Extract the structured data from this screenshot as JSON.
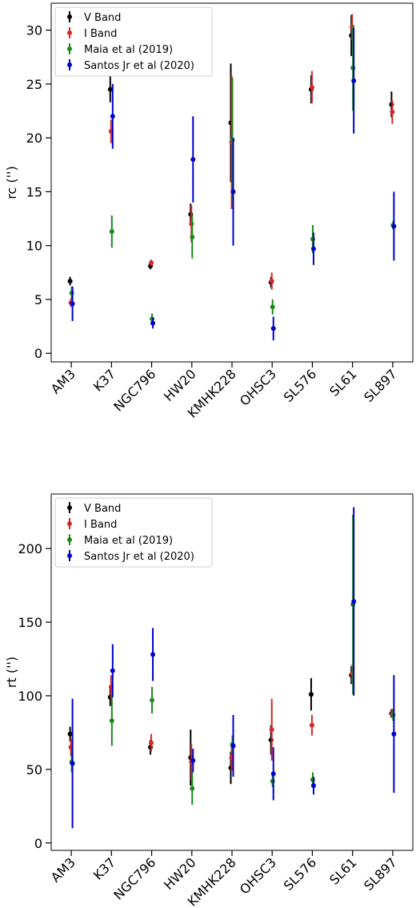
{
  "chart_data": [
    {
      "type": "scatter",
      "ylabel": "rc ('')",
      "xlabel": "",
      "title": "",
      "ylim": [
        -0.8,
        32.5
      ],
      "yticks": [
        0,
        5,
        10,
        15,
        20,
        25,
        30
      ],
      "grid": false,
      "legend_position": "top-left",
      "categories": [
        "AM3",
        "K37",
        "NGC796",
        "HW20",
        "KMHK228",
        "OHSC3",
        "SL576",
        "SL61",
        "SL897"
      ],
      "series": [
        {
          "name": "V Band",
          "color": "#000000",
          "values": [
            6.7,
            24.5,
            8.1,
            12.9,
            21.4,
            6.6,
            24.5,
            29.5,
            23.1
          ],
          "errors": [
            0.4,
            1.2,
            0.3,
            1.0,
            5.5,
            0.5,
            1.3,
            1.9,
            1.2
          ]
        },
        {
          "name": "I Band",
          "color": "#d62728",
          "values": [
            4.7,
            20.6,
            8.4,
            12.0,
            19.6,
            6.7,
            24.7,
            30.3,
            22.4
          ],
          "errors": [
            0.4,
            1.1,
            0.3,
            1.7,
            6.2,
            0.8,
            1.5,
            1.2,
            1.1
          ]
        },
        {
          "name": "Maia et al (2019)",
          "color": "#1a8a1a",
          "values": [
            5.6,
            11.3,
            3.2,
            10.8,
            19.8,
            4.3,
            10.6,
            26.5,
            11.9
          ],
          "errors": [
            0.6,
            1.5,
            0.5,
            2.0,
            5.8,
            0.7,
            1.3,
            4.0,
            0.4
          ]
        },
        {
          "name": "Santos Jr et al (2020)",
          "color": "#0000cc",
          "values": [
            4.6,
            22.0,
            2.8,
            18.0,
            15.0,
            2.3,
            9.7,
            25.3,
            11.8
          ],
          "errors": [
            1.6,
            3.0,
            0.5,
            4.0,
            5.0,
            1.1,
            1.5,
            4.9,
            3.2
          ]
        }
      ]
    },
    {
      "type": "scatter",
      "ylabel": "rt ('')",
      "xlabel": "",
      "title": "",
      "ylim": [
        -5,
        237
      ],
      "yticks": [
        0,
        50,
        100,
        150,
        200
      ],
      "grid": false,
      "legend_position": "top-left",
      "categories": [
        "AM3",
        "K37",
        "NGC796",
        "HW20",
        "KMHK228",
        "OHSC3",
        "SL576",
        "SL61",
        "SL897"
      ],
      "series": [
        {
          "name": "V Band",
          "color": "#000000",
          "values": [
            74,
            99,
            65,
            58,
            51,
            70,
            101,
            114,
            88
          ],
          "errors": [
            5,
            6,
            5,
            19,
            11,
            10,
            11,
            6,
            3
          ]
        },
        {
          "name": "I Band",
          "color": "#d62728",
          "values": [
            65,
            106,
            68,
            55,
            58,
            77,
            80,
            115,
            88
          ],
          "errors": [
            6,
            8,
            6,
            12,
            9,
            21,
            7,
            6,
            3
          ]
        },
        {
          "name": "Maia et al (2019)",
          "color": "#1a8a1a",
          "values": [
            55,
            83,
            97,
            37,
            67,
            42,
            43,
            162,
            87
          ],
          "errors": [
            7,
            17,
            9,
            11,
            6,
            4,
            5,
            61,
            4
          ]
        },
        {
          "name": "Santos Jr et al (2020)",
          "color": "#0000cc",
          "values": [
            54,
            117,
            128,
            56,
            66,
            47,
            39,
            164,
            74
          ],
          "errors": [
            44,
            18,
            18,
            8,
            21,
            18,
            6,
            64,
            40
          ]
        }
      ]
    }
  ]
}
